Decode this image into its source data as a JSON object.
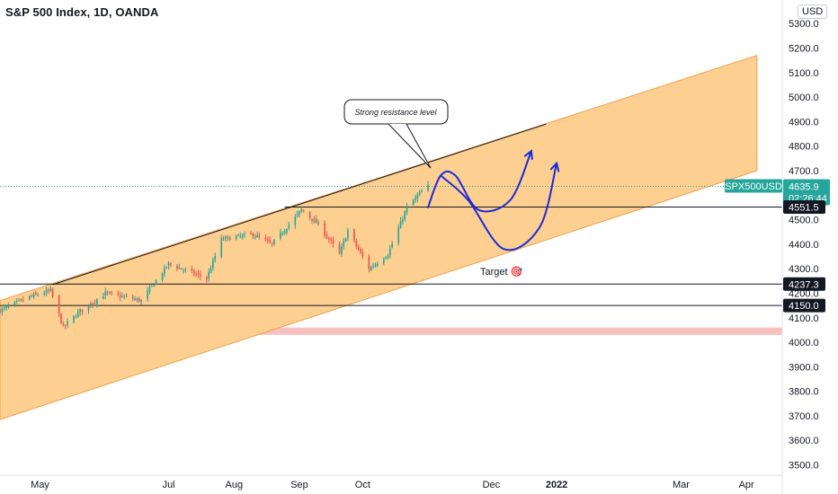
{
  "header": {
    "title": "S&P 500 Index, 1D, OANDA",
    "currency_button": "USD"
  },
  "colors": {
    "up": "#26a69a",
    "down": "#ef5350",
    "channel_fill": "#fdcf91",
    "channel_border": "#f0a04a",
    "projection": "#1c2bd9",
    "support_zone": "#f7b4b4",
    "price_label_bg": "#131722",
    "symbol_label_bg": "#26a69a"
  },
  "chart_data": {
    "type": "candlestick",
    "symbol": "SPX500USD",
    "interval": "1D",
    "x_ticks": [
      {
        "label": "May",
        "date": "2021-05-01"
      },
      {
        "label": "Jul",
        "date": "2021-07-01"
      },
      {
        "label": "Aug",
        "date": "2021-08-01"
      },
      {
        "label": "Sep",
        "date": "2021-09-01"
      },
      {
        "label": "Oct",
        "date": "2021-10-01"
      },
      {
        "label": "Dec",
        "date": "2021-12-01"
      },
      {
        "label": "2022",
        "date": "2022-01-01"
      },
      {
        "label": "Mar",
        "date": "2022-03-01"
      },
      {
        "label": "Apr",
        "date": "2022-04-01"
      }
    ],
    "y_ticks": [
      3500,
      3600,
      3700,
      3800,
      3900,
      4000,
      4100,
      4200,
      4300,
      4400,
      4500,
      4600,
      4700,
      4800,
      4900,
      5000,
      5100,
      5200,
      5300
    ],
    "ylim": [
      3458,
      5396
    ],
    "xlim": [
      "2021-04-12",
      "2022-04-18"
    ],
    "close_path": [
      {
        "date": "2021-04-12",
        "close": 4130
      },
      {
        "date": "2021-04-26",
        "close": 4185
      },
      {
        "date": "2021-05-06",
        "close": 4210
      },
      {
        "date": "2021-05-12",
        "close": 4060
      },
      {
        "date": "2021-05-19",
        "close": 4120
      },
      {
        "date": "2021-06-01",
        "close": 4200
      },
      {
        "date": "2021-06-18",
        "close": 4170
      },
      {
        "date": "2021-07-01",
        "close": 4320
      },
      {
        "date": "2021-07-19",
        "close": 4260
      },
      {
        "date": "2021-07-26",
        "close": 4420
      },
      {
        "date": "2021-08-10",
        "close": 4440
      },
      {
        "date": "2021-08-19",
        "close": 4400
      },
      {
        "date": "2021-09-02",
        "close": 4540
      },
      {
        "date": "2021-09-10",
        "close": 4480
      },
      {
        "date": "2021-09-20",
        "close": 4360
      },
      {
        "date": "2021-09-24",
        "close": 4455
      },
      {
        "date": "2021-10-04",
        "close": 4300
      },
      {
        "date": "2021-10-13",
        "close": 4360
      },
      {
        "date": "2021-10-22",
        "close": 4550
      },
      {
        "date": "2021-10-29",
        "close": 4615
      },
      {
        "date": "2021-11-01",
        "close": 4636
      }
    ],
    "channel": {
      "upper": [
        {
          "date": "2021-04-12",
          "price": 4170
        },
        {
          "date": "2022-04-06",
          "price": 5170
        }
      ],
      "lower": [
        {
          "date": "2021-04-12",
          "price": 3685
        },
        {
          "date": "2022-04-06",
          "price": 4700
        }
      ]
    },
    "resistance_line": [
      {
        "date": "2021-05-07",
        "price": 4235
      },
      {
        "date": "2021-12-27",
        "price": 4890
      }
    ],
    "horizontal_levels": [
      4551.5,
      4237.3,
      4150.0
    ],
    "support_zone": [
      4030,
      4060
    ],
    "projections": [
      [
        {
          "date": "2021-11-01",
          "price": 4550
        },
        {
          "date": "2021-11-07",
          "price": 4680
        },
        {
          "date": "2021-11-14",
          "price": 4680
        },
        {
          "date": "2021-11-25",
          "price": 4540
        },
        {
          "date": "2021-12-10",
          "price": 4580
        },
        {
          "date": "2021-12-20",
          "price": 4780
        }
      ],
      [
        {
          "date": "2021-11-07",
          "price": 4680
        },
        {
          "date": "2021-11-20",
          "price": 4580
        },
        {
          "date": "2021-12-07",
          "price": 4380
        },
        {
          "date": "2021-12-24",
          "price": 4470
        },
        {
          "date": "2022-01-01",
          "price": 4730
        }
      ]
    ],
    "annotations": {
      "callout": "Strong resistance level",
      "target": "Target 🎯"
    },
    "price_labels": {
      "symbol": "SPX500USD",
      "last_price": "4635.9",
      "countdown": "02:26:44",
      "levels": [
        "4551.5",
        "4237.3",
        "4150.0"
      ]
    }
  }
}
